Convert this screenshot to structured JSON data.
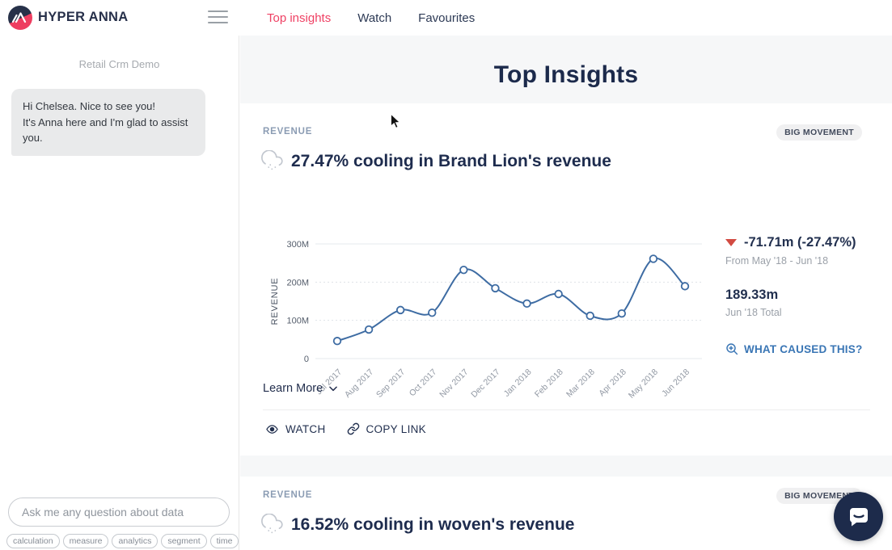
{
  "header": {
    "brand": "HYPER ANNA",
    "nav": [
      {
        "label": "Top insights",
        "active": true
      },
      {
        "label": "Watch",
        "active": false
      },
      {
        "label": "Favourites",
        "active": false
      }
    ]
  },
  "sidebar": {
    "dataset_label": "Retail Crm Demo",
    "greeting_line1": "Hi Chelsea. Nice to see you!",
    "greeting_line2": "It's Anna here and I'm glad to assist you.",
    "ask_placeholder": "Ask me any question about data",
    "tags": [
      "calculation",
      "measure",
      "analytics",
      "segment",
      "time"
    ]
  },
  "main": {
    "page_title": "Top Insights",
    "cards": [
      {
        "category": "REVENUE",
        "badge": "BIG MOVEMENT",
        "title": "27.47% cooling in Brand Lion's revenue",
        "change": "-71.71m (-27.47%)",
        "change_period": "From May '18 - Jun '18",
        "total": "189.33m",
        "total_label": "Jun '18 Total",
        "cta": "WHAT CAUSED THIS?",
        "learn_more": "Learn More",
        "watch_label": "WATCH",
        "copy_link_label": "COPY LINK"
      },
      {
        "category": "REVENUE",
        "badge": "BIG MOVEMENT",
        "title": "16.52% cooling in woven's revenue"
      }
    ]
  },
  "chart_data": {
    "type": "line",
    "title": "27.47% cooling in Brand Lion's revenue",
    "x": [
      "Jul 2017",
      "Aug 2017",
      "Sep 2017",
      "Oct 2017",
      "Nov 2017",
      "Dec 2017",
      "Jan 2018",
      "Feb 2018",
      "Mar 2018",
      "Apr 2018",
      "May 2018",
      "Jun 2018"
    ],
    "series": [
      {
        "name": "Revenue",
        "values": [
          46,
          76,
          127,
          120,
          232,
          184,
          144,
          169,
          112,
          118,
          261.04,
          189.33
        ]
      }
    ],
    "unit": "millions",
    "ylabel": "REVENUE",
    "xlabel": "",
    "ylim": [
      0,
      300
    ],
    "yticks": [
      0,
      100,
      200,
      300
    ],
    "ytick_labels": [
      "0",
      "100M",
      "200M",
      "300M"
    ],
    "grid": true,
    "legend": false,
    "line_color": "#3e6ca3",
    "marker": "open-circle"
  },
  "colors": {
    "accent_pink": "#ef4164",
    "navy": "#1e2c4e",
    "link_blue": "#3a76b5",
    "negative_red": "#d24b42",
    "chart_line": "#3e6ca3"
  }
}
